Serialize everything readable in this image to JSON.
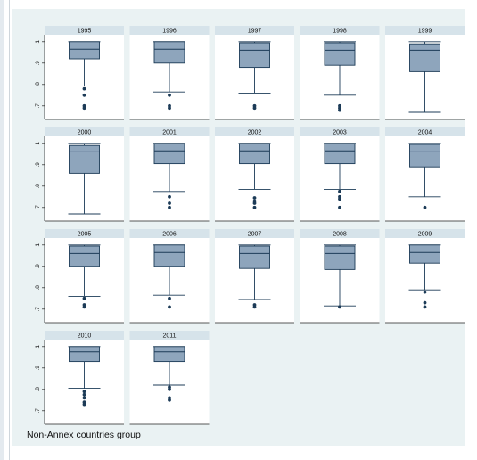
{
  "note": "Non-Annex countries group",
  "colors": {
    "box_fill": "#8ea5bc",
    "box_stroke": "#1c3b57",
    "header_bg": "#d6e3ea",
    "panel_bg": "#ffffff",
    "outer_bg": "#eaf2f3",
    "outlier": "#1c3b57"
  },
  "chart_data": {
    "type": "box",
    "layout": "small multiples, 5 columns x 4 rows",
    "y_ticks": [
      {
        "value": 0.7,
        "label": ".7"
      },
      {
        "value": 0.8,
        "label": ".8"
      },
      {
        "value": 0.9,
        "label": ".9"
      },
      {
        "value": 1.0,
        "label": "1"
      }
    ],
    "ylim": [
      0.67,
      1.02
    ],
    "panels": [
      {
        "year": "1995",
        "whisker_low": 0.793,
        "q1": 0.92,
        "median": 0.965,
        "q3": 1.0,
        "whisker_high": 1.0,
        "outliers": [
          0.78,
          0.75,
          0.7,
          0.69
        ]
      },
      {
        "year": "1996",
        "whisker_low": 0.765,
        "q1": 0.9,
        "median": 0.965,
        "q3": 1.0,
        "whisker_high": 1.0,
        "outliers": [
          0.75,
          0.7,
          0.69
        ]
      },
      {
        "year": "1997",
        "whisker_low": 0.76,
        "q1": 0.88,
        "median": 0.96,
        "q3": 0.995,
        "whisker_high": 1.0,
        "outliers": [
          0.7,
          0.69
        ]
      },
      {
        "year": "1998",
        "whisker_low": 0.75,
        "q1": 0.89,
        "median": 0.96,
        "q3": 0.995,
        "whisker_high": 1.0,
        "outliers": [
          0.7,
          0.69,
          0.68
        ]
      },
      {
        "year": "1999",
        "whisker_low": 0.67,
        "q1": 0.86,
        "median": 0.96,
        "q3": 0.99,
        "whisker_high": 1.0,
        "outliers": []
      },
      {
        "year": "2000",
        "whisker_low": 0.67,
        "q1": 0.86,
        "median": 0.96,
        "q3": 0.99,
        "whisker_high": 1.0,
        "outliers": []
      },
      {
        "year": "2001",
        "whisker_low": 0.775,
        "q1": 0.905,
        "median": 0.965,
        "q3": 1.0,
        "whisker_high": 1.0,
        "outliers": [
          0.75,
          0.72,
          0.7
        ]
      },
      {
        "year": "2002",
        "whisker_low": 0.785,
        "q1": 0.905,
        "median": 0.965,
        "q3": 1.0,
        "whisker_high": 1.0,
        "outliers": [
          0.745,
          0.73,
          0.72,
          0.7
        ]
      },
      {
        "year": "2003",
        "whisker_low": 0.785,
        "q1": 0.905,
        "median": 0.965,
        "q3": 1.0,
        "whisker_high": 1.0,
        "outliers": [
          0.775,
          0.75,
          0.74,
          0.7
        ]
      },
      {
        "year": "2004",
        "whisker_low": 0.75,
        "q1": 0.89,
        "median": 0.96,
        "q3": 0.995,
        "whisker_high": 1.0,
        "outliers": [
          0.7
        ]
      },
      {
        "year": "2005",
        "whisker_low": 0.76,
        "q1": 0.9,
        "median": 0.96,
        "q3": 0.995,
        "whisker_high": 1.0,
        "outliers": [
          0.75,
          0.72,
          0.71
        ]
      },
      {
        "year": "2006",
        "whisker_low": 0.765,
        "q1": 0.9,
        "median": 0.965,
        "q3": 1.0,
        "whisker_high": 1.0,
        "outliers": [
          0.75,
          0.71
        ]
      },
      {
        "year": "2007",
        "whisker_low": 0.745,
        "q1": 0.89,
        "median": 0.96,
        "q3": 0.995,
        "whisker_high": 1.0,
        "outliers": [
          0.72,
          0.71
        ]
      },
      {
        "year": "2008",
        "whisker_low": 0.715,
        "q1": 0.885,
        "median": 0.96,
        "q3": 0.995,
        "whisker_high": 1.0,
        "outliers": [
          0.71
        ]
      },
      {
        "year": "2009",
        "whisker_low": 0.79,
        "q1": 0.915,
        "median": 0.965,
        "q3": 1.0,
        "whisker_high": 1.0,
        "outliers": [
          0.78,
          0.73,
          0.71
        ]
      },
      {
        "year": "2010",
        "whisker_low": 0.805,
        "q1": 0.93,
        "median": 0.975,
        "q3": 1.0,
        "whisker_high": 1.0,
        "outliers": [
          0.79,
          0.775,
          0.76,
          0.74,
          0.73
        ]
      },
      {
        "year": "2011",
        "whisker_low": 0.82,
        "q1": 0.93,
        "median": 0.975,
        "q3": 1.0,
        "whisker_high": 1.0,
        "outliers": [
          0.81,
          0.8,
          0.76,
          0.75
        ]
      }
    ]
  }
}
